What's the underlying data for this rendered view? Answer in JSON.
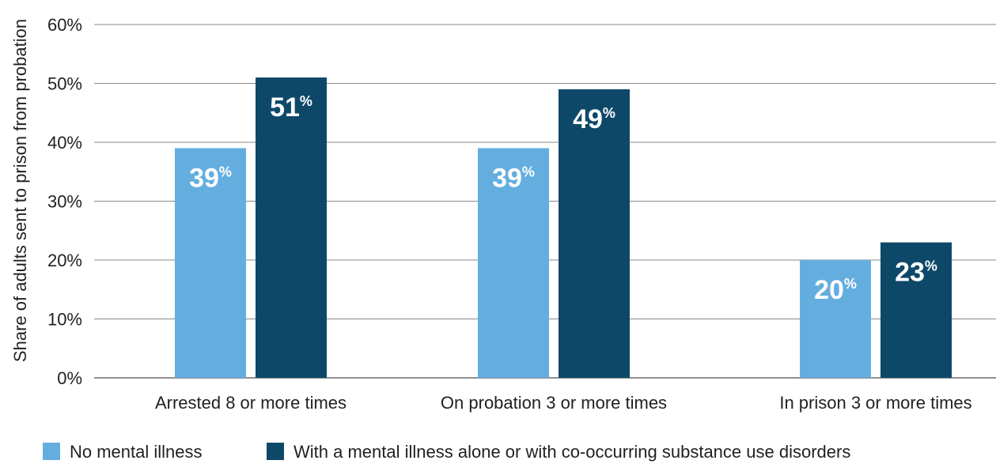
{
  "chart_data": {
    "type": "bar",
    "title": "",
    "xlabel": "",
    "ylabel": "Share of adults sent to prison from probation",
    "categories": [
      "Arrested 8 or more times",
      "On probation 3 or more times",
      "In prison 3 or more times"
    ],
    "series": [
      {
        "name": "No mental illness",
        "values": [
          39,
          39,
          20
        ],
        "color": "#63aedf"
      },
      {
        "name": "With a mental illness alone or with co-occurring substance use disorders",
        "values": [
          51,
          49,
          23
        ],
        "color": "#0e4869"
      }
    ],
    "ylim": [
      0,
      60
    ],
    "yticks": [
      0,
      10,
      20,
      30,
      40,
      50,
      60
    ],
    "ytick_suffix": "%",
    "value_suffix": "%",
    "grid": true,
    "legend": "bottom"
  }
}
